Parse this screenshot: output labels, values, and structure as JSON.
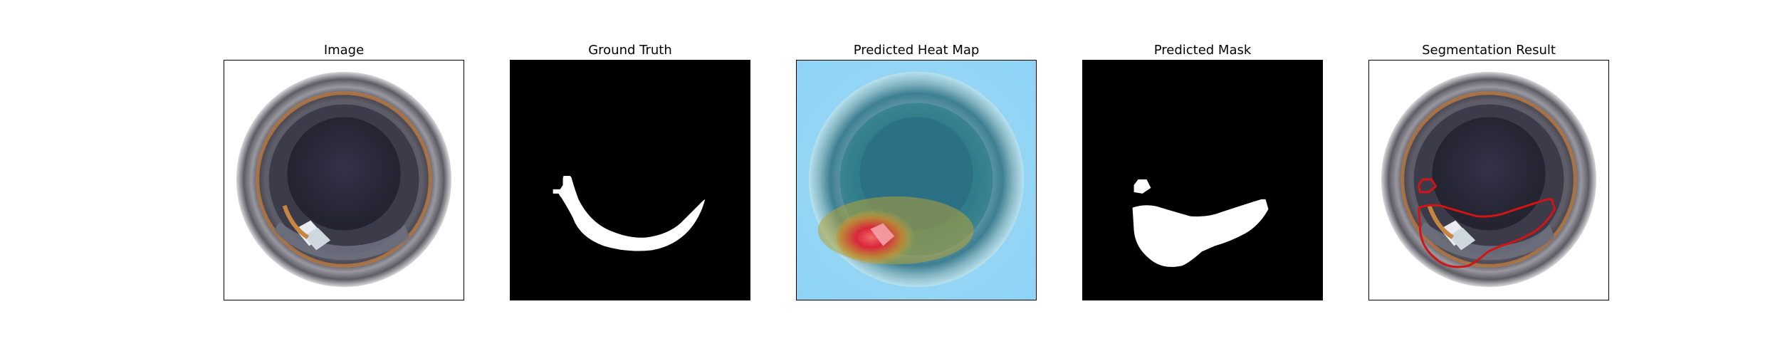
{
  "panels": [
    {
      "title": "Image"
    },
    {
      "title": "Ground Truth"
    },
    {
      "title": "Predicted Heat Map"
    },
    {
      "title": "Predicted Mask"
    },
    {
      "title": "Segmentation Result"
    }
  ],
  "colors": {
    "mask_fg": "#ffffff",
    "mask_bg": "#000000",
    "contour": "#d21414",
    "heat_cold": "#8fd3f4",
    "heat_hot": "#d9263a"
  }
}
